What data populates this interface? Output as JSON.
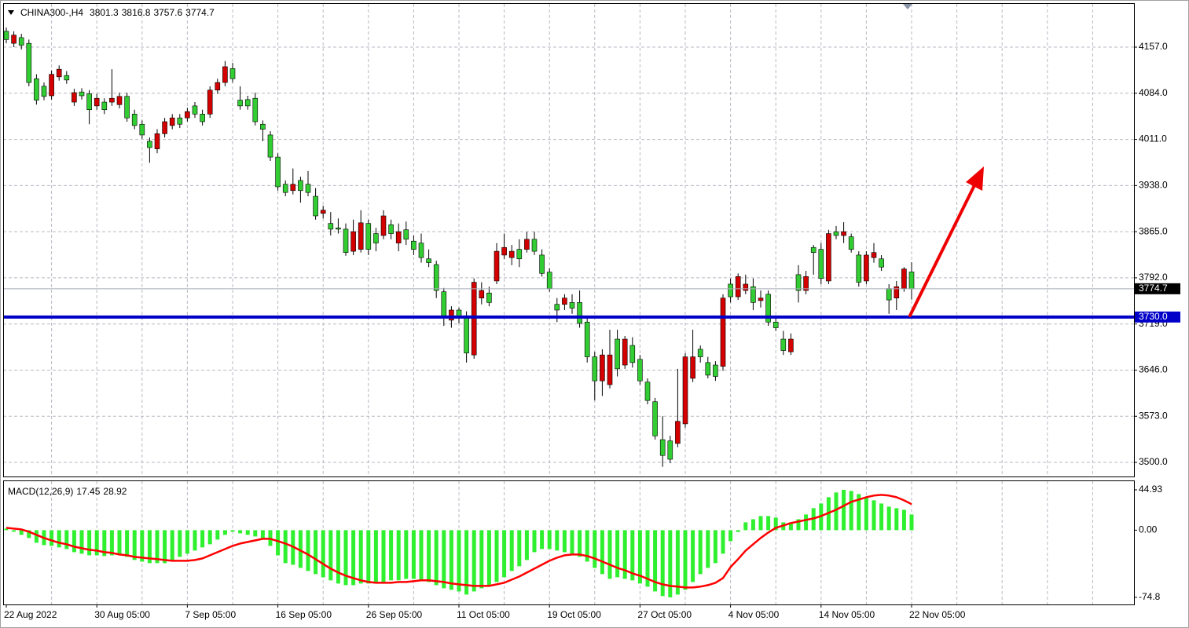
{
  "chart_data": [
    {
      "type": "candlestick",
      "symbol": "CHINA300-,H4",
      "open": [
        4182,
        4163,
        4172,
        4163,
        4107,
        4095,
        4080,
        4110,
        4112,
        4070,
        4086,
        4083,
        4064,
        4070,
        4070,
        4066,
        4079,
        4051,
        4035,
        4008,
        3996,
        4020,
        4033,
        4045,
        4045,
        4064,
        4051,
        4051,
        4089,
        4101,
        4123,
        4073,
        4074,
        4076,
        4035,
        4018,
        3983,
        3940,
        3930,
        3946,
        3940,
        3921,
        3894,
        3878,
        3871,
        3869,
        3834,
        3837,
        3878,
        3862,
        3859,
        3876,
        3847,
        3868,
        3850,
        3847,
        3822,
        3813,
        3770,
        3725,
        3741,
        3732,
        3670,
        3760,
        3768,
        3787,
        3828,
        3824,
        3837,
        3837,
        3853,
        3828,
        3801,
        3750,
        3750,
        3753,
        3753,
        3722,
        3667,
        3629,
        3623,
        3695,
        3654,
        3685,
        3663,
        3627,
        3596,
        3536,
        3534,
        3530,
        3561,
        3633,
        3679,
        3658,
        3654,
        3652,
        3782,
        3762,
        3772,
        3778,
        3756,
        3766,
        3722,
        3695,
        3675,
        3797,
        3772,
        3840,
        3837,
        3787,
        3865,
        3859,
        3857,
        3828,
        3787,
        3824,
        3822,
        3775,
        3760,
        3775,
        3801.3
      ],
      "high": [
        4188,
        4182,
        4178,
        4169,
        4114,
        4101,
        4120,
        4128,
        4119,
        4091,
        4092,
        4089,
        4083,
        4076,
        4122,
        4085,
        4085,
        4058,
        4041,
        4014,
        4027,
        4045,
        4051,
        4051,
        4061,
        4070,
        4058,
        4095,
        4107,
        4135,
        4132,
        4095,
        4080,
        4085,
        4041,
        4024,
        3989,
        3946,
        3965,
        3952,
        3961,
        3934,
        3906,
        3896,
        3886,
        3878,
        3884,
        3899,
        3884,
        3871,
        3899,
        3884,
        3878,
        3881,
        3859,
        3862,
        3837,
        3819,
        3776,
        3747,
        3745,
        3739,
        3791,
        3785,
        3778,
        3847,
        3862,
        3844,
        3853,
        3865,
        3865,
        3837,
        3807,
        3760,
        3766,
        3766,
        3772,
        3729,
        3675,
        3679,
        3710,
        3710,
        3700,
        3698,
        3670,
        3633,
        3602,
        3573,
        3542,
        3648,
        3673,
        3710,
        3685,
        3667,
        3660,
        3766,
        3791,
        3799,
        3797,
        3791,
        3772,
        3772,
        3729,
        3708,
        3704,
        3812,
        3803,
        3844,
        3847,
        3868,
        3874,
        3880,
        3862,
        3834,
        3834,
        3847,
        3828,
        3782,
        3787,
        3809,
        3816.8
      ],
      "low": [
        4163,
        4157,
        4153,
        4095,
        4066,
        4073,
        4074,
        4104,
        4099,
        4064,
        4074,
        4035,
        4058,
        4051,
        4064,
        4060,
        4039,
        4027,
        4012,
        3974,
        3989,
        4014,
        4027,
        4029,
        4039,
        4045,
        4033,
        4045,
        4083,
        4095,
        4101,
        4058,
        4058,
        4033,
        4008,
        3977,
        3930,
        3921,
        3924,
        3911,
        3921,
        3884,
        3886,
        3859,
        3862,
        3827,
        3828,
        3832,
        3828,
        3834,
        3853,
        3853,
        3834,
        3844,
        3828,
        3816,
        3809,
        3760,
        3716,
        3713,
        3720,
        3658,
        3664,
        3750,
        3747,
        3782,
        3822,
        3812,
        3809,
        3832,
        3828,
        3794,
        3770,
        3722,
        3741,
        3735,
        3713,
        3658,
        3598,
        3605,
        3617,
        3636,
        3648,
        3650,
        3623,
        3592,
        3536,
        3493,
        3499,
        3524,
        3555,
        3627,
        3658,
        3633,
        3629,
        3645,
        3753,
        3757,
        3766,
        3741,
        3745,
        3716,
        3708,
        3670,
        3670,
        3753,
        3766,
        3797,
        3782,
        3782,
        3853,
        3847,
        3832,
        3778,
        3782,
        3816,
        3803,
        3735,
        3741,
        3770,
        3757.6
      ],
      "close": [
        4169,
        4176,
        4160,
        4101,
        4073,
        4079,
        4114,
        4122,
        4105,
        4085,
        4080,
        4058,
        4076,
        4058,
        4076,
        4079,
        4045,
        4033,
        4018,
        3998,
        4020,
        4039,
        4045,
        4035,
        4055,
        4051,
        4039,
        4089,
        4101,
        4126,
        4107,
        4064,
        4064,
        4039,
        4027,
        3983,
        3936,
        3927,
        3940,
        3930,
        3927,
        3890,
        3899,
        3869,
        3869,
        3832,
        3865,
        3879,
        3837,
        3847,
        3890,
        3862,
        3865,
        3853,
        3837,
        3824,
        3816,
        3772,
        3732,
        3741,
        3729,
        3673,
        3785,
        3772,
        3753,
        3834,
        3840,
        3834,
        3822,
        3853,
        3834,
        3799,
        3775,
        3741,
        3760,
        3744,
        3720,
        3667,
        3629,
        3670,
        3670,
        3648,
        3695,
        3658,
        3629,
        3598,
        3542,
        3511,
        3505,
        3565,
        3667,
        3667,
        3667,
        3638,
        3636,
        3760,
        3762,
        3794,
        3782,
        3753,
        3760,
        3722,
        3713,
        3677,
        3695,
        3772,
        3794,
        3832,
        3791,
        3862,
        3859,
        3865,
        3837,
        3785,
        3828,
        3832,
        3809,
        3757,
        3778,
        3806,
        3774.7
      ],
      "up_color": "#d40000",
      "down_color": "#32cd32",
      "ylim": [
        3477.7,
        4225.3
      ],
      "yticks": [
        {
          "value": 4157,
          "label": "4157.0"
        },
        {
          "value": 4084,
          "label": "4084.0"
        },
        {
          "value": 4011,
          "label": "4011.0"
        },
        {
          "value": 3938,
          "label": "3938.0"
        },
        {
          "value": 3865,
          "label": "3865.0"
        },
        {
          "value": 3792,
          "label": "3792.0"
        },
        {
          "value": 3719,
          "label": "3719.0"
        },
        {
          "value": 3646,
          "label": "3646.0"
        },
        {
          "value": 3573,
          "label": "3573.0"
        },
        {
          "value": 3500,
          "label": "3500.0"
        }
      ],
      "xticks": [
        {
          "value": 0,
          "label": "22 Aug 2022"
        },
        {
          "value": 12,
          "label": "30 Aug 05:00"
        },
        {
          "value": 24,
          "label": "7 Sep 05:00"
        },
        {
          "value": 36,
          "label": "16 Sep 05:00"
        },
        {
          "value": 48,
          "label": "26 Sep 05:00"
        },
        {
          "value": 60,
          "label": "11 Oct 05:00"
        },
        {
          "value": 72,
          "label": "19 Oct 05:00"
        },
        {
          "value": 84,
          "label": "27 Oct 05:00"
        },
        {
          "value": 96,
          "label": "4 Nov 05:00"
        },
        {
          "value": 108,
          "label": "14 Nov 05:00"
        },
        {
          "value": 120,
          "label": "22 Nov 05:00"
        }
      ],
      "hline": {
        "value": 3730,
        "label": "3730.0",
        "color": "#0000c8"
      },
      "grid": true
    },
    {
      "type": "macd",
      "title": "MACD(12,26,9)",
      "series": [
        {
          "kind": "bar",
          "color": "#2ef02e",
          "values": [
            1.7,
            -1.7,
            -5.2,
            -8.7,
            -14.0,
            -16.6,
            -17.5,
            -19.2,
            -21.0,
            -24.5,
            -26.2,
            -28.0,
            -28.0,
            -28.8,
            -28.0,
            -28.0,
            -29.7,
            -33.2,
            -35.0,
            -36.7,
            -36.7,
            -36.7,
            -33.2,
            -29.7,
            -26.2,
            -22.7,
            -19.2,
            -15.7,
            -10.5,
            -5.2,
            -1.7,
            -3.5,
            -5.2,
            -7.0,
            -8.7,
            -17.5,
            -28.0,
            -36.7,
            -38.5,
            -42.0,
            -45.4,
            -48.9,
            -52.4,
            -55.9,
            -59.4,
            -61.2,
            -61.2,
            -59.4,
            -59.4,
            -59.4,
            -57.7,
            -55.9,
            -55.9,
            -54.2,
            -54.2,
            -55.9,
            -57.7,
            -61.2,
            -64.7,
            -66.4,
            -68.2,
            -71.7,
            -68.2,
            -64.7,
            -61.2,
            -57.7,
            -52.4,
            -45.4,
            -40.2,
            -33.2,
            -24.5,
            -21.0,
            -21.0,
            -22.7,
            -24.5,
            -26.2,
            -29.7,
            -35.0,
            -42.0,
            -48.9,
            -54.2,
            -52.4,
            -54.2,
            -55.9,
            -59.4,
            -62.9,
            -68.2,
            -73.4,
            -74.8,
            -71.7,
            -66.4,
            -57.7,
            -48.9,
            -42.0,
            -36.7,
            -26.2,
            -12.2,
            -2.0,
            8.7,
            12.2,
            15.7,
            15.7,
            14.0,
            8.7,
            8.7,
            12.2,
            17.5,
            24.5,
            29.7,
            36.7,
            42.0,
            44.93,
            43.7,
            40.2,
            36.7,
            33.2,
            29.7,
            26.2,
            24.5,
            22.7,
            17.45
          ]
        },
        {
          "kind": "line",
          "color": "#ff0000",
          "values": [
            2.6,
            1.7,
            0.9,
            -1.7,
            -5.2,
            -8.7,
            -11.4,
            -14.0,
            -15.7,
            -18.4,
            -20.1,
            -21.9,
            -22.7,
            -24.5,
            -25.3,
            -27.1,
            -28.0,
            -29.7,
            -30.6,
            -31.5,
            -32.3,
            -33.2,
            -34.1,
            -34.1,
            -34.1,
            -33.2,
            -31.5,
            -28.0,
            -24.5,
            -21.0,
            -17.5,
            -14.9,
            -13.1,
            -11.4,
            -9.6,
            -9.6,
            -12.2,
            -14.9,
            -18.4,
            -22.7,
            -27.1,
            -32.3,
            -37.6,
            -42.8,
            -47.2,
            -50.7,
            -53.3,
            -55.9,
            -57.7,
            -58.6,
            -58.6,
            -58.6,
            -57.7,
            -57.7,
            -56.8,
            -55.9,
            -55.9,
            -56.8,
            -57.7,
            -59.4,
            -60.3,
            -61.2,
            -62.1,
            -62.1,
            -62.1,
            -60.3,
            -58.6,
            -55.1,
            -51.6,
            -47.2,
            -42.8,
            -38.5,
            -34.1,
            -30.6,
            -28.0,
            -27.1,
            -27.1,
            -28.8,
            -31.5,
            -35.0,
            -38.5,
            -42.0,
            -44.6,
            -48.1,
            -50.7,
            -54.2,
            -57.7,
            -60.3,
            -62.1,
            -62.9,
            -63.8,
            -63.8,
            -62.9,
            -61.2,
            -58.6,
            -53.3,
            -41.1,
            -32.3,
            -22.7,
            -15.7,
            -8.7,
            -2.6,
            2.6,
            5.2,
            7.9,
            9.6,
            11.4,
            13.1,
            15.7,
            19.2,
            22.7,
            27.1,
            31.5,
            34.1,
            36.7,
            38.5,
            39.3,
            38.5,
            36.7,
            33.2,
            28.92
          ]
        }
      ],
      "ylim": [
        -82.7,
        55.4
      ],
      "yticks": [
        44.93,
        {
          "value": 0,
          "label": "0.00"
        },
        -74.8
      ]
    }
  ]
}
